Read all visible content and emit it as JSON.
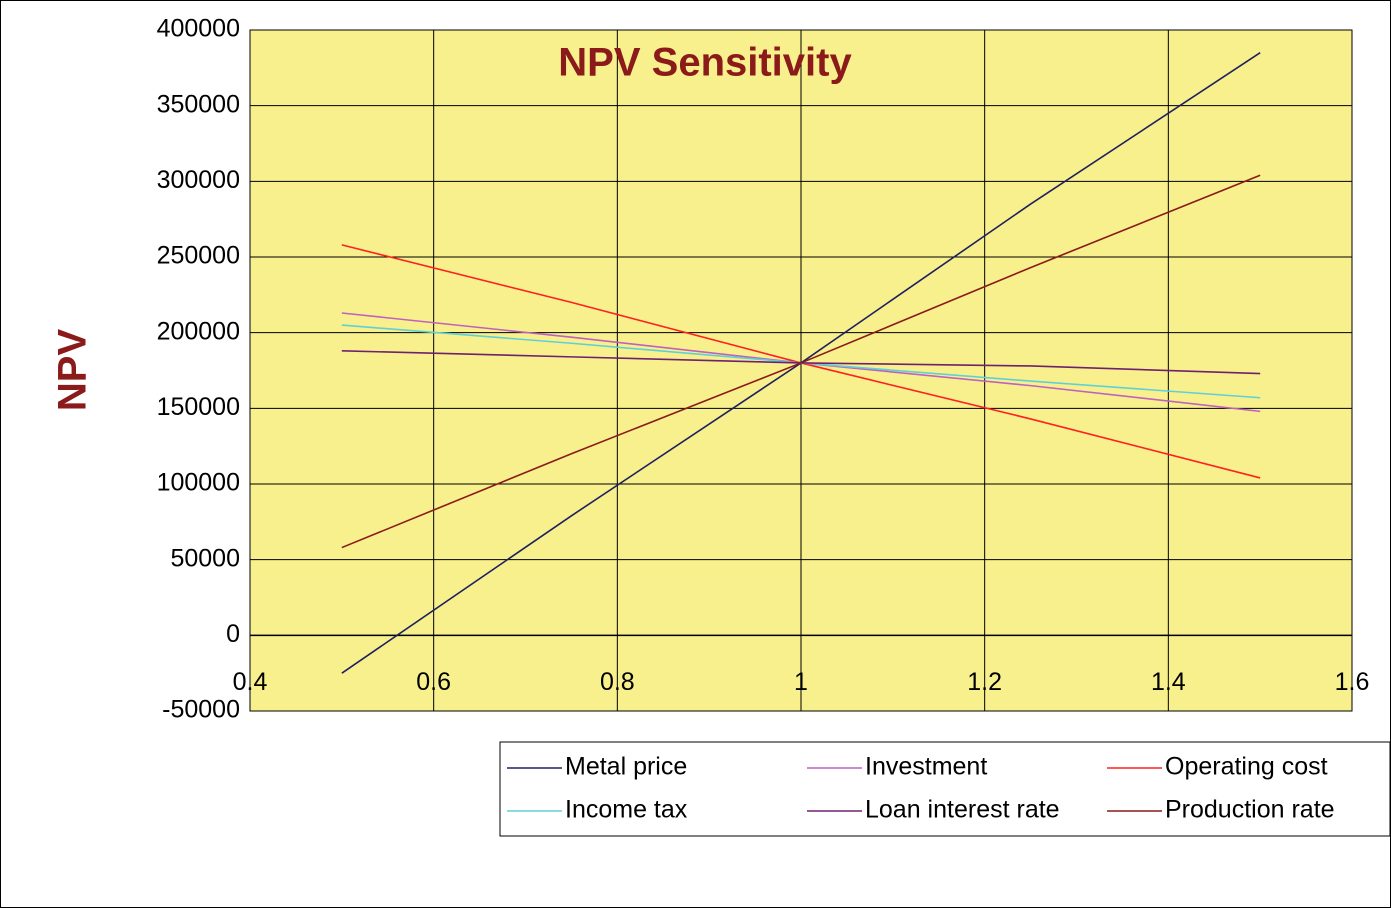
{
  "chart_data": {
    "type": "line",
    "title": "NPV Sensitivity",
    "y_label": "NPV",
    "x": [
      0.5,
      0.75,
      1,
      1.25,
      1.5
    ],
    "series": [
      {
        "name": "Metal price",
        "color": "#1f2060",
        "values": [
          -25000,
          79000,
          180000,
          285000,
          385000
        ]
      },
      {
        "name": "Investment",
        "color": "#c060c0",
        "values": [
          213000,
          197000,
          180000,
          165000,
          148000
        ]
      },
      {
        "name": "Operating cost",
        "color": "#ff2020",
        "values": [
          258000,
          220000,
          180000,
          143000,
          104000
        ]
      },
      {
        "name": "Income tax",
        "color": "#60d0d8",
        "values": [
          205000,
          193000,
          180000,
          168000,
          157000
        ]
      },
      {
        "name": "Loan interest rate",
        "color": "#702070",
        "values": [
          188000,
          184000,
          180000,
          178000,
          173000
        ]
      },
      {
        "name": "Production rate",
        "color": "#8b1a1a",
        "values": [
          58000,
          120000,
          180000,
          243000,
          304000
        ]
      }
    ],
    "xlim": [
      0.4,
      1.6
    ],
    "xticks": [
      0.4,
      0.6,
      0.8,
      1,
      1.2,
      1.4,
      1.6
    ],
    "ylim": [
      -50000,
      400000
    ],
    "yticks": [
      -50000,
      0,
      50000,
      100000,
      150000,
      200000,
      250000,
      300000,
      350000,
      400000
    ],
    "grid": true,
    "legend": "bottom-right"
  }
}
